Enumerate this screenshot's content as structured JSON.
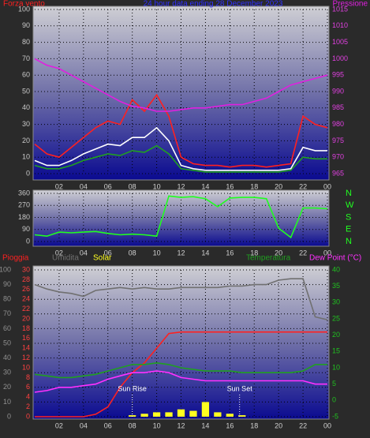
{
  "chart_data": [
    {
      "type": "line",
      "title": "24 hour data ending 28 December 2023",
      "title_color": "#3030ff",
      "ylabel": "Forza vento",
      "ylabel_color": "#ff2020",
      "x": [
        0,
        1,
        2,
        3,
        4,
        5,
        6,
        7,
        8,
        9,
        10,
        11,
        12,
        13,
        14,
        15,
        16,
        17,
        18,
        19,
        20,
        21,
        22,
        23,
        24
      ],
      "xlim": [
        0,
        24
      ],
      "xticks": [
        {
          "value": 2,
          "label": "02"
        },
        {
          "value": 4,
          "label": "04"
        },
        {
          "value": 6,
          "label": "06"
        },
        {
          "value": 8,
          "label": "08"
        },
        10,
        12,
        14,
        16,
        18,
        20,
        22,
        {
          "value": 24,
          "label": "00"
        }
      ],
      "ylim": [
        0,
        100
      ],
      "yticks": [
        0,
        10,
        20,
        30,
        40,
        50,
        60,
        70,
        80,
        90,
        100
      ],
      "y2lim": [
        965,
        1015
      ],
      "y2ticks": [
        965,
        970,
        975,
        980,
        985,
        990,
        995,
        1000,
        1005,
        1010,
        1015
      ],
      "grid": true,
      "series": [
        {
          "color": "#ff2020",
          "values": [
            18,
            12,
            10,
            16,
            22,
            28,
            32,
            30,
            45,
            38,
            48,
            35,
            10,
            6,
            5,
            5,
            4,
            5,
            5,
            4,
            5,
            6,
            35,
            30,
            28
          ]
        },
        {
          "color": "#20a020",
          "values": [
            5,
            3,
            3,
            5,
            8,
            10,
            12,
            11,
            14,
            13,
            17,
            12,
            3,
            2,
            1,
            1,
            1,
            1,
            1,
            1,
            1,
            2,
            10,
            9,
            9
          ]
        },
        {
          "color": "#ffffff",
          "values": [
            8,
            5,
            5,
            8,
            12,
            15,
            18,
            17,
            22,
            22,
            28,
            20,
            5,
            3,
            2,
            2,
            2,
            2,
            2,
            2,
            2,
            3,
            16,
            14,
            14
          ]
        },
        {
          "name": "Pressione",
          "color": "#e020e0",
          "axis": "y2",
          "values": [
            1000,
            998,
            997,
            995,
            993,
            991,
            989,
            987,
            985.5,
            985,
            984,
            984,
            984.5,
            985,
            985,
            985.5,
            986,
            986,
            987,
            988,
            990,
            992,
            993,
            994,
            995
          ]
        }
      ]
    },
    {
      "type": "line",
      "x": [
        0,
        1,
        2,
        3,
        4,
        5,
        6,
        7,
        8,
        9,
        10,
        11,
        12,
        13,
        14,
        15,
        16,
        17,
        18,
        19,
        20,
        21,
        22,
        23,
        24
      ],
      "xlim": [
        0,
        24
      ],
      "xticks": [
        {
          "value": 2,
          "label": "02"
        },
        {
          "value": 4,
          "label": "04"
        },
        {
          "value": 6,
          "label": "06"
        },
        {
          "value": 8,
          "label": "08"
        },
        10,
        12,
        14,
        16,
        18,
        20,
        22,
        {
          "value": 24,
          "label": "00"
        }
      ],
      "ylim": [
        0,
        360
      ],
      "yticks": [
        0,
        90,
        180,
        270,
        360
      ],
      "y2lim": [
        0,
        360
      ],
      "y2ticks": [
        {
          "value": 0,
          "label": "N"
        },
        {
          "value": 90,
          "label": "E"
        },
        {
          "value": 180,
          "label": "S"
        },
        {
          "value": 270,
          "label": "W"
        },
        {
          "value": 360,
          "label": "N"
        }
      ],
      "grid": true,
      "series": [
        {
          "color": "#20ff20",
          "values": [
            50,
            40,
            70,
            65,
            70,
            75,
            60,
            50,
            55,
            50,
            40,
            340,
            330,
            335,
            320,
            260,
            325,
            330,
            330,
            320,
            100,
            30,
            250,
            250,
            245
          ]
        }
      ]
    },
    {
      "type": "line",
      "x": [
        0,
        1,
        2,
        3,
        4,
        5,
        6,
        7,
        8,
        9,
        10,
        11,
        12,
        13,
        14,
        15,
        16,
        17,
        18,
        19,
        20,
        21,
        22,
        23,
        24
      ],
      "xlim": [
        0,
        24
      ],
      "xticks": [
        {
          "value": 2,
          "label": "02"
        },
        {
          "value": 4,
          "label": "04"
        },
        {
          "value": 6,
          "label": "06"
        },
        {
          "value": 8,
          "label": "08"
        },
        10,
        12,
        14,
        16,
        18,
        20,
        22,
        {
          "value": 24,
          "label": "00"
        }
      ],
      "ylim": [
        0,
        100
      ],
      "yticks": [
        0,
        10,
        20,
        30,
        40,
        50,
        60,
        70,
        80,
        90,
        100
      ],
      "y3lim": [
        0,
        30
      ],
      "y3ticks": [
        0,
        2,
        4,
        6,
        8,
        10,
        12,
        14,
        16,
        18,
        20,
        22,
        24,
        26,
        28,
        30
      ],
      "y2lim": [
        -5,
        40
      ],
      "y2ticks": [
        -5,
        0,
        5,
        10,
        15,
        20,
        25,
        30,
        35,
        40
      ],
      "grid": true,
      "series": [
        {
          "name": "Pioggia",
          "color": "#ff2020",
          "axis": "y3",
          "values": [
            0,
            0,
            0,
            0,
            0,
            0.5,
            2,
            6,
            9,
            11,
            14,
            17,
            17.3,
            17.3,
            17.3,
            17.3,
            17.3,
            17.3,
            17.3,
            17.3,
            17.3,
            17.3,
            17.3,
            17.3,
            17.3
          ]
        },
        {
          "name": "Umidita",
          "color": "#707070",
          "values": [
            90,
            87,
            85,
            84,
            82,
            86,
            87,
            88,
            87,
            88,
            87,
            87,
            88,
            88,
            88,
            88,
            89,
            89,
            90,
            90,
            93,
            94,
            94,
            68,
            66
          ]
        },
        {
          "name": "Solar",
          "color": "#ffff20",
          "type": "bar",
          "values": [
            null,
            null,
            null,
            null,
            null,
            null,
            null,
            null,
            1,
            2,
            3,
            3,
            5,
            4,
            10,
            3,
            2,
            1,
            null,
            null,
            null,
            null,
            null,
            null,
            null
          ]
        },
        {
          "name": "Temperatura",
          "color": "#20a020",
          "axis": "y2",
          "values": [
            8,
            7.5,
            7,
            7,
            7.5,
            8,
            9,
            10,
            11,
            11,
            11.5,
            11,
            10,
            9.5,
            9,
            9,
            9,
            8.5,
            8.5,
            8.5,
            8.5,
            8.5,
            9,
            11,
            11
          ]
        },
        {
          "name": "Dew Point (°C)",
          "color": "#ff30ff",
          "axis": "y2",
          "values": [
            2.5,
            3,
            4,
            4,
            4.5,
            5,
            6.5,
            7.5,
            8.5,
            8.5,
            9,
            8.5,
            7,
            6.5,
            6,
            6,
            6,
            6,
            6,
            6,
            6,
            6,
            6,
            5,
            5
          ]
        }
      ],
      "annotations": [
        {
          "text": "Sun Rise",
          "x": 8
        },
        {
          "text": "Sun Set",
          "x": 16.8
        }
      ]
    }
  ]
}
